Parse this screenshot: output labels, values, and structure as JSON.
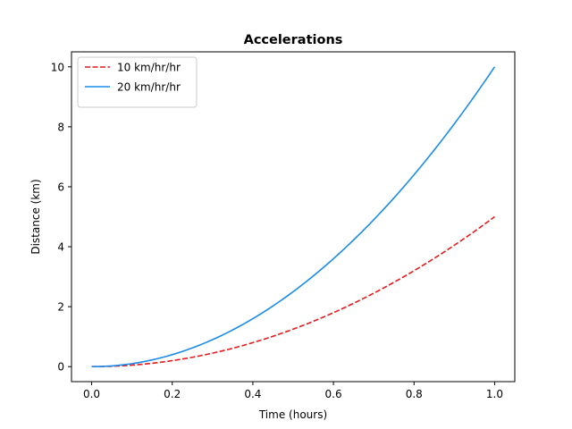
{
  "chart_data": {
    "type": "line",
    "title": "Accelerations",
    "xlabel": "Time (hours)",
    "ylabel": "Distance (km)",
    "xlim": [
      -0.05,
      1.05
    ],
    "ylim": [
      -0.5,
      10.5
    ],
    "xticks": [
      0.0,
      0.2,
      0.4,
      0.6,
      0.8,
      1.0
    ],
    "xtick_labels": [
      "0.0",
      "0.2",
      "0.4",
      "0.6",
      "0.8",
      "1.0"
    ],
    "yticks": [
      0,
      2,
      4,
      6,
      8,
      10
    ],
    "ytick_labels": [
      "0",
      "2",
      "4",
      "6",
      "8",
      "10"
    ],
    "grid": false,
    "legend_position": "top-left",
    "series": [
      {
        "name": "10 km/hr/hr",
        "color": "#e41a1c",
        "style": "dashed",
        "x": [
          0.0,
          0.1,
          0.2,
          0.3,
          0.4,
          0.5,
          0.6,
          0.7,
          0.8,
          0.9,
          1.0
        ],
        "y": [
          0.0,
          0.05,
          0.2,
          0.45,
          0.8,
          1.25,
          1.8,
          2.45,
          3.2,
          4.05,
          5.0
        ]
      },
      {
        "name": "20 km/hr/hr",
        "color": "#1a8be8",
        "style": "solid",
        "x": [
          0.0,
          0.1,
          0.2,
          0.3,
          0.4,
          0.5,
          0.6,
          0.7,
          0.8,
          0.9,
          1.0
        ],
        "y": [
          0.0,
          0.1,
          0.4,
          0.9,
          1.6,
          2.5,
          3.6,
          4.9,
          6.4,
          8.1,
          10.0
        ]
      }
    ]
  }
}
